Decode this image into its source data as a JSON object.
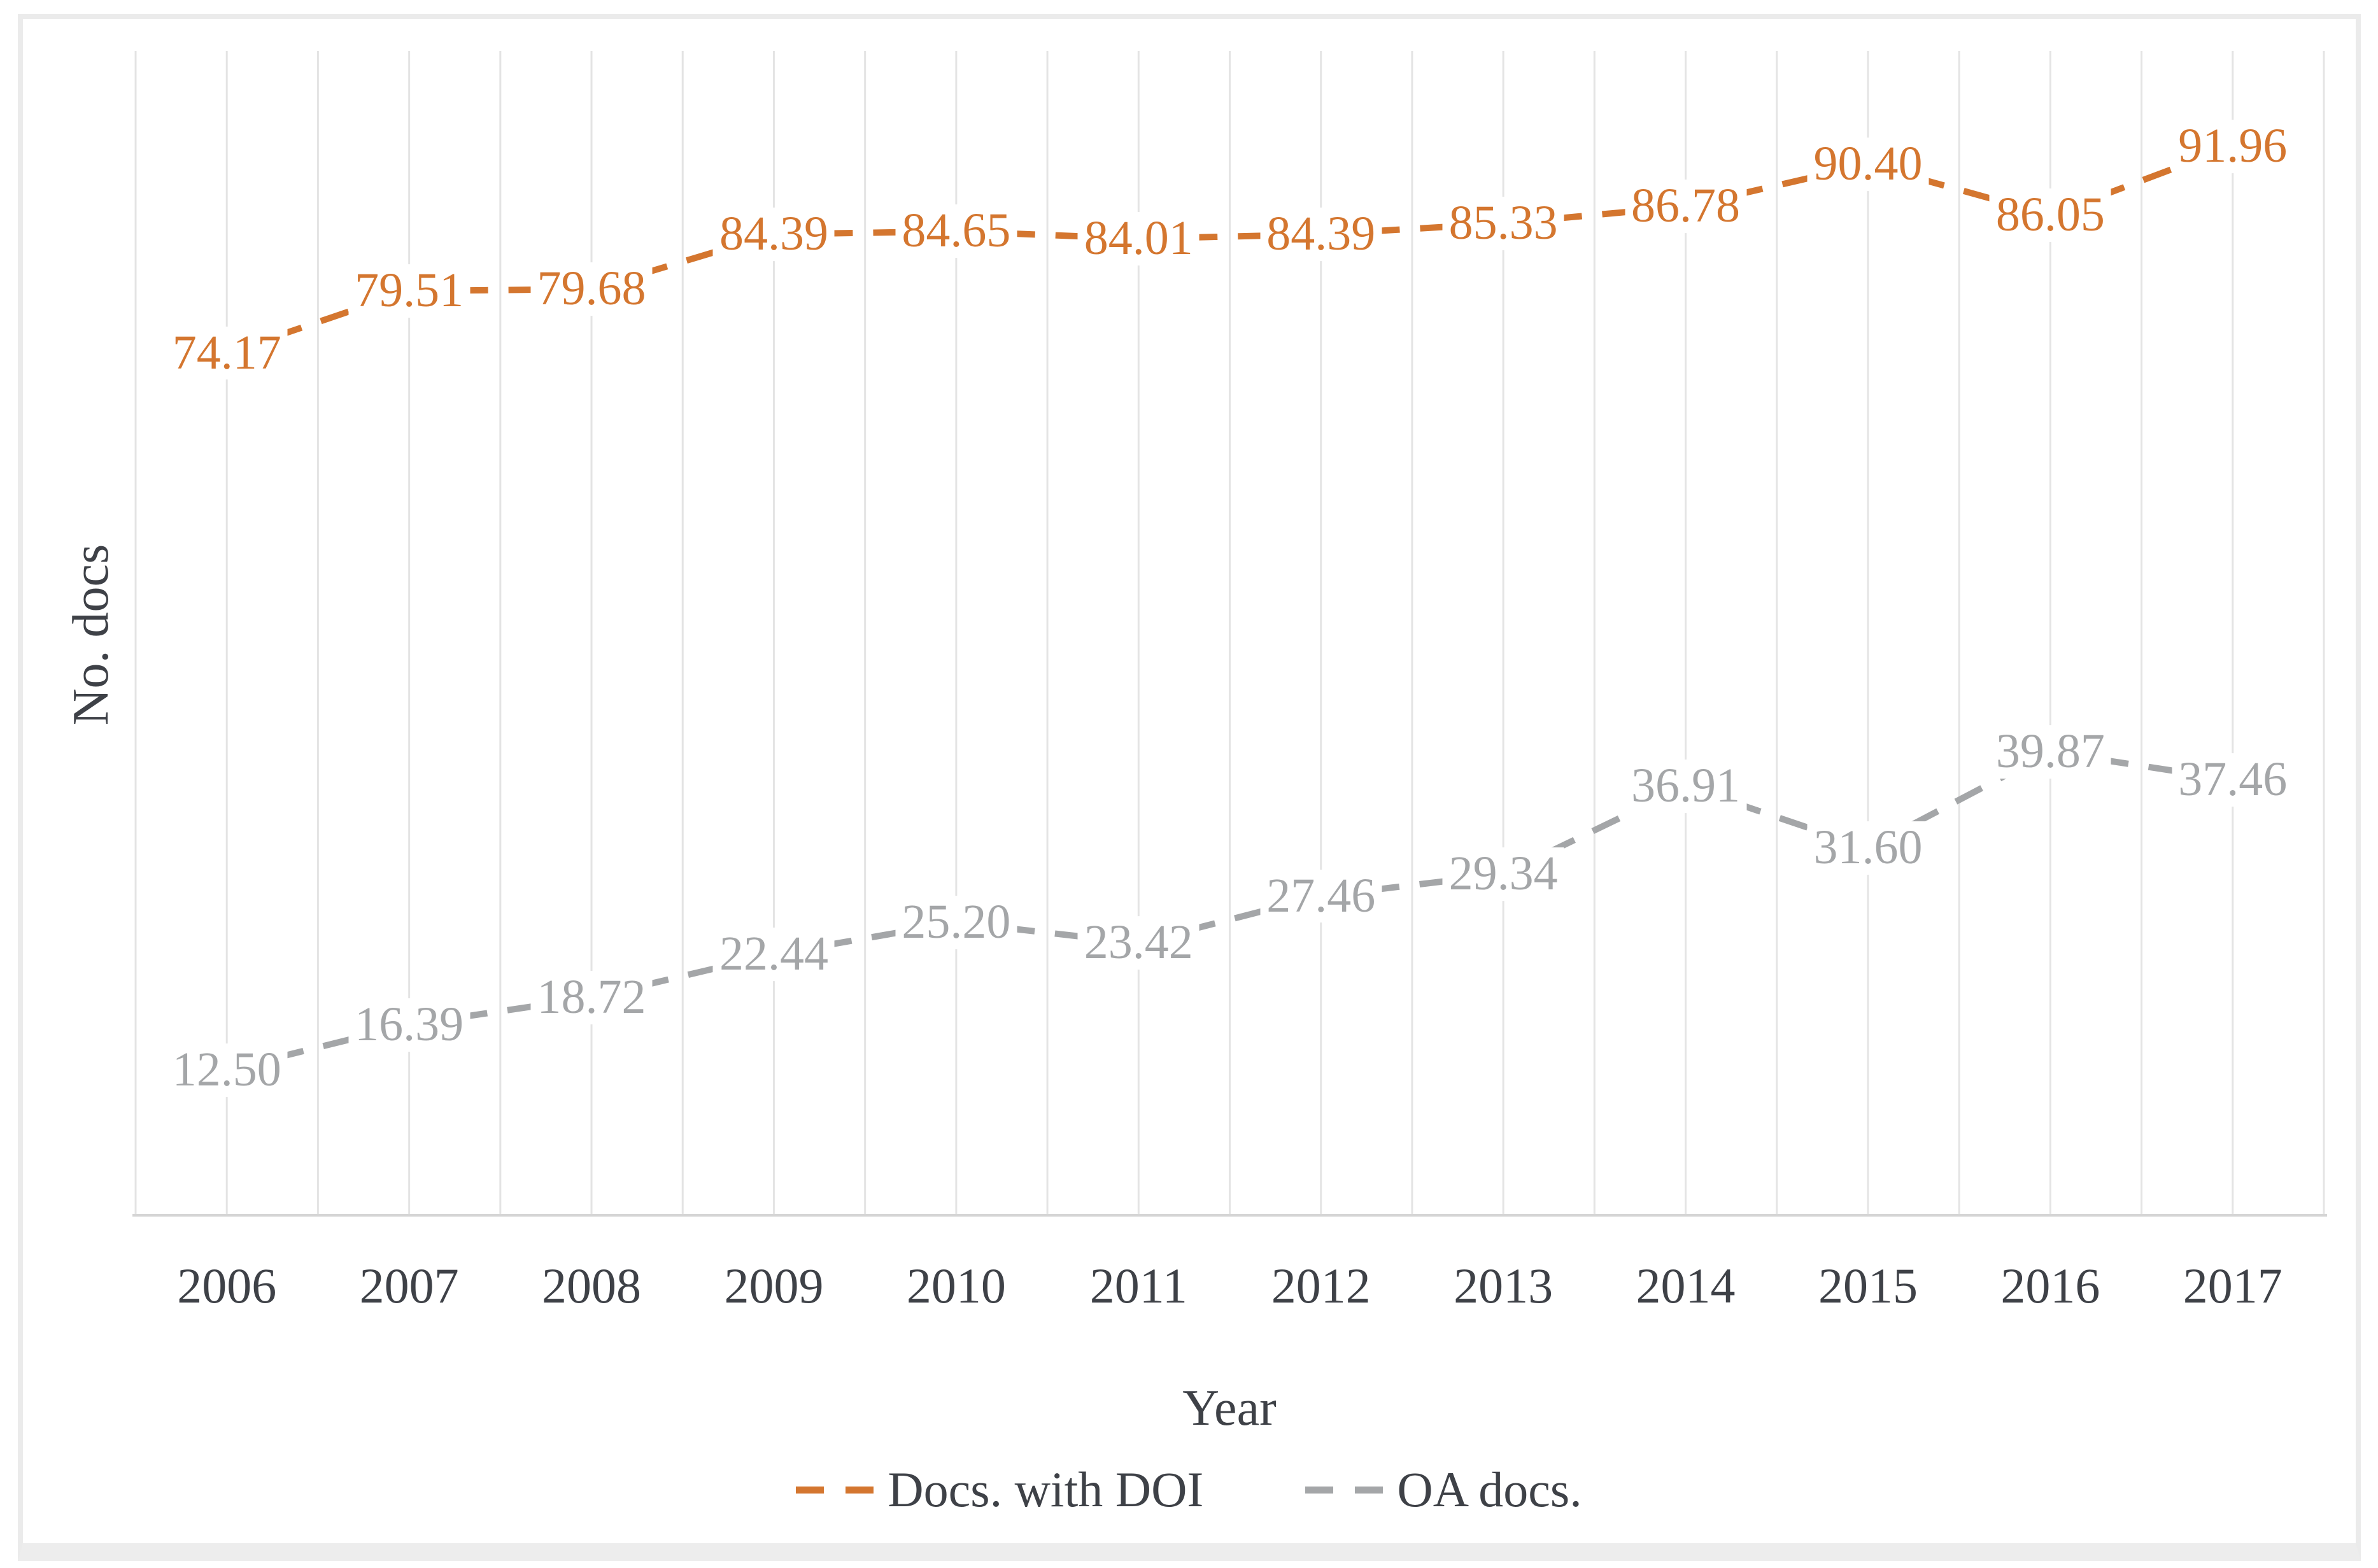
{
  "chart_data": {
    "type": "line",
    "title": "",
    "xlabel": "Year",
    "ylabel": "No. docs",
    "categories": [
      "2006",
      "2007",
      "2008",
      "2009",
      "2010",
      "2011",
      "2012",
      "2013",
      "2014",
      "2015",
      "2016",
      "2017"
    ],
    "series": [
      {
        "name": "Docs. with DOI",
        "color": "#D4762F",
        "values": [
          74.17,
          79.51,
          79.68,
          84.39,
          84.65,
          84.01,
          84.39,
          85.33,
          86.78,
          90.4,
          86.05,
          91.96
        ]
      },
      {
        "name": "OA docs.",
        "color": "#A4A6A8",
        "values": [
          12.5,
          16.39,
          18.72,
          22.44,
          25.2,
          23.42,
          27.46,
          29.34,
          36.91,
          31.6,
          39.87,
          37.46
        ]
      }
    ],
    "ylim": [
      0,
      100
    ],
    "y_ticks_visible": false,
    "grid": "vertical-only",
    "line_style": "dashed",
    "data_labels": "two-decimals-centered-on-points",
    "legend_position": "bottom"
  },
  "colors": {
    "grid_line": "#e4e4e4",
    "axis_line": "#d5d5d5",
    "axis_text": "#3e4147",
    "panel_border": "#ebebeb",
    "background": "#ffffff"
  }
}
